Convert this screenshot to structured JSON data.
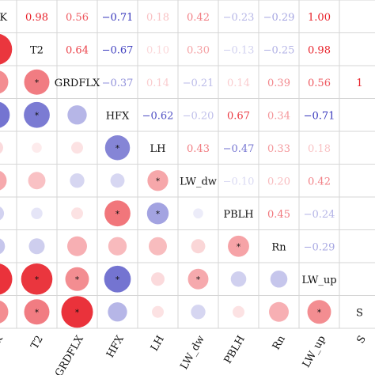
{
  "chart_data": {
    "type": "heatmap",
    "variables": [
      "TSK",
      "T2",
      "GRDFLX",
      "HFX",
      "LH",
      "LW_dw",
      "PBLH",
      "Rn",
      "LW_up",
      "S"
    ],
    "upper_triangle": [
      {
        "row": "TSK",
        "cells": [
          {
            "col": "T2",
            "text": "0.98",
            "value": 0.98
          },
          {
            "col": "GRDFLX",
            "text": "0.56",
            "value": 0.56
          },
          {
            "col": "HFX",
            "text": "−0.71",
            "value": -0.71
          },
          {
            "col": "LH",
            "text": "0.18",
            "value": 0.18
          },
          {
            "col": "LW_dw",
            "text": "0.42",
            "value": 0.42
          },
          {
            "col": "PBLH",
            "text": "−0.23",
            "value": -0.23
          },
          {
            "col": "Rn",
            "text": "−0.29",
            "value": -0.29
          },
          {
            "col": "LW_up",
            "text": "1.00",
            "value": 1.0
          }
        ]
      },
      {
        "row": "T2",
        "cells": [
          {
            "col": "GRDFLX",
            "text": "0.64",
            "value": 0.64
          },
          {
            "col": "HFX",
            "text": "−0.67",
            "value": -0.67
          },
          {
            "col": "LH",
            "text": "0.10",
            "value": 0.1
          },
          {
            "col": "LW_dw",
            "text": "0.30",
            "value": 0.3
          },
          {
            "col": "PBLH",
            "text": "−0.13",
            "value": -0.13
          },
          {
            "col": "Rn",
            "text": "−0.25",
            "value": -0.25
          },
          {
            "col": "LW_up",
            "text": "0.98",
            "value": 0.98
          }
        ]
      },
      {
        "row": "GRDFLX",
        "cells": [
          {
            "col": "HFX",
            "text": "−0.37",
            "value": -0.37
          },
          {
            "col": "LH",
            "text": "0.14",
            "value": 0.14
          },
          {
            "col": "LW_dw",
            "text": "−0.21",
            "value": -0.21
          },
          {
            "col": "PBLH",
            "text": "0.14",
            "value": 0.14
          },
          {
            "col": "Rn",
            "text": "0.39",
            "value": 0.39
          },
          {
            "col": "LW_up",
            "text": "0.56",
            "value": 0.56
          },
          {
            "col": "S",
            "text": "1",
            "value": 1.0
          }
        ]
      },
      {
        "row": "HFX",
        "cells": [
          {
            "col": "LH",
            "text": "−0.62",
            "value": -0.62
          },
          {
            "col": "LW_dw",
            "text": "−0.20",
            "value": -0.2
          },
          {
            "col": "PBLH",
            "text": "0.67",
            "value": 0.67
          },
          {
            "col": "Rn",
            "text": "0.34",
            "value": 0.34
          },
          {
            "col": "LW_up",
            "text": "−0.71",
            "value": -0.71
          }
        ]
      },
      {
        "row": "LH",
        "cells": [
          {
            "col": "LW_dw",
            "text": "0.43",
            "value": 0.43
          },
          {
            "col": "PBLH",
            "text": "−0.47",
            "value": -0.47
          },
          {
            "col": "Rn",
            "text": "0.33",
            "value": 0.33
          },
          {
            "col": "LW_up",
            "text": "0.18",
            "value": 0.18
          }
        ]
      },
      {
        "row": "LW_dw",
        "cells": [
          {
            "col": "PBLH",
            "text": "−0.10",
            "value": -0.1
          },
          {
            "col": "Rn",
            "text": "0.20",
            "value": 0.2
          },
          {
            "col": "LW_up",
            "text": "0.42",
            "value": 0.42
          }
        ]
      },
      {
        "row": "PBLH",
        "cells": [
          {
            "col": "Rn",
            "text": "0.45",
            "value": 0.45
          },
          {
            "col": "LW_up",
            "text": "−0.24",
            "value": -0.24
          }
        ]
      },
      {
        "row": "Rn",
        "cells": [
          {
            "col": "LW_up",
            "text": "−0.29",
            "value": -0.29
          }
        ]
      }
    ],
    "lower_triangle": [
      {
        "row": "T2",
        "cells": [
          {
            "col": "TSK",
            "value": 0.98,
            "significant": true
          }
        ]
      },
      {
        "row": "GRDFLX",
        "cells": [
          {
            "col": "TSK",
            "value": 0.56,
            "significant": true
          },
          {
            "col": "T2",
            "value": 0.64,
            "significant": true
          }
        ]
      },
      {
        "row": "HFX",
        "cells": [
          {
            "col": "TSK",
            "value": -0.71,
            "significant": true
          },
          {
            "col": "T2",
            "value": -0.67,
            "significant": true
          },
          {
            "col": "GRDFLX",
            "value": -0.37,
            "significant": false
          }
        ]
      },
      {
        "row": "LH",
        "cells": [
          {
            "col": "TSK",
            "value": 0.18,
            "significant": false
          },
          {
            "col": "T2",
            "value": 0.1,
            "significant": false
          },
          {
            "col": "GRDFLX",
            "value": 0.14,
            "significant": false
          },
          {
            "col": "HFX",
            "value": -0.62,
            "significant": true
          }
        ]
      },
      {
        "row": "LW_dw",
        "cells": [
          {
            "col": "TSK",
            "value": 0.42,
            "significant": true
          },
          {
            "col": "T2",
            "value": 0.3,
            "significant": false
          },
          {
            "col": "GRDFLX",
            "value": -0.21,
            "significant": false
          },
          {
            "col": "HFX",
            "value": -0.2,
            "significant": false
          },
          {
            "col": "LH",
            "value": 0.43,
            "significant": true
          }
        ]
      },
      {
        "row": "PBLH",
        "cells": [
          {
            "col": "TSK",
            "value": -0.23,
            "significant": false
          },
          {
            "col": "T2",
            "value": -0.13,
            "significant": false
          },
          {
            "col": "GRDFLX",
            "value": 0.14,
            "significant": false
          },
          {
            "col": "HFX",
            "value": 0.67,
            "significant": true
          },
          {
            "col": "LH",
            "value": -0.47,
            "significant": true
          },
          {
            "col": "LW_dw",
            "value": -0.1,
            "significant": false
          }
        ]
      },
      {
        "row": "Rn",
        "cells": [
          {
            "col": "TSK",
            "value": -0.29,
            "significant": false
          },
          {
            "col": "T2",
            "value": -0.25,
            "significant": false
          },
          {
            "col": "GRDFLX",
            "value": 0.39,
            "significant": false
          },
          {
            "col": "HFX",
            "value": 0.34,
            "significant": false
          },
          {
            "col": "LH",
            "value": 0.33,
            "significant": false
          },
          {
            "col": "LW_dw",
            "value": 0.2,
            "significant": false
          },
          {
            "col": "PBLH",
            "value": 0.45,
            "significant": true
          }
        ]
      },
      {
        "row": "LW_up",
        "cells": [
          {
            "col": "TSK",
            "value": 1.0,
            "significant": true
          },
          {
            "col": "T2",
            "value": 0.98,
            "significant": true
          },
          {
            "col": "GRDFLX",
            "value": 0.56,
            "significant": true
          },
          {
            "col": "HFX",
            "value": -0.71,
            "significant": true
          },
          {
            "col": "LH",
            "value": 0.18,
            "significant": false
          },
          {
            "col": "LW_dw",
            "value": 0.42,
            "significant": true
          },
          {
            "col": "PBLH",
            "value": -0.24,
            "significant": false
          },
          {
            "col": "Rn",
            "value": -0.29,
            "significant": false
          }
        ]
      },
      {
        "row": "S",
        "cells": [
          {
            "col": "TSK",
            "value": 0.56,
            "significant": true
          },
          {
            "col": "T2",
            "value": 0.64,
            "significant": true
          },
          {
            "col": "GRDFLX",
            "value": 1.0,
            "significant": true
          },
          {
            "col": "HFX",
            "value": -0.37,
            "significant": false
          },
          {
            "col": "LH",
            "value": 0.14,
            "significant": false
          },
          {
            "col": "LW_dw",
            "value": -0.21,
            "significant": false
          },
          {
            "col": "PBLH",
            "value": 0.14,
            "significant": false
          },
          {
            "col": "Rn",
            "value": 0.39,
            "significant": false
          },
          {
            "col": "LW_up",
            "value": 0.56,
            "significant": true
          }
        ]
      }
    ],
    "significance_marker": "*",
    "color_scale": {
      "positive": "#e8212a",
      "negative": "#2a2ab8",
      "neutral": "#ffffff"
    },
    "grid": true
  }
}
